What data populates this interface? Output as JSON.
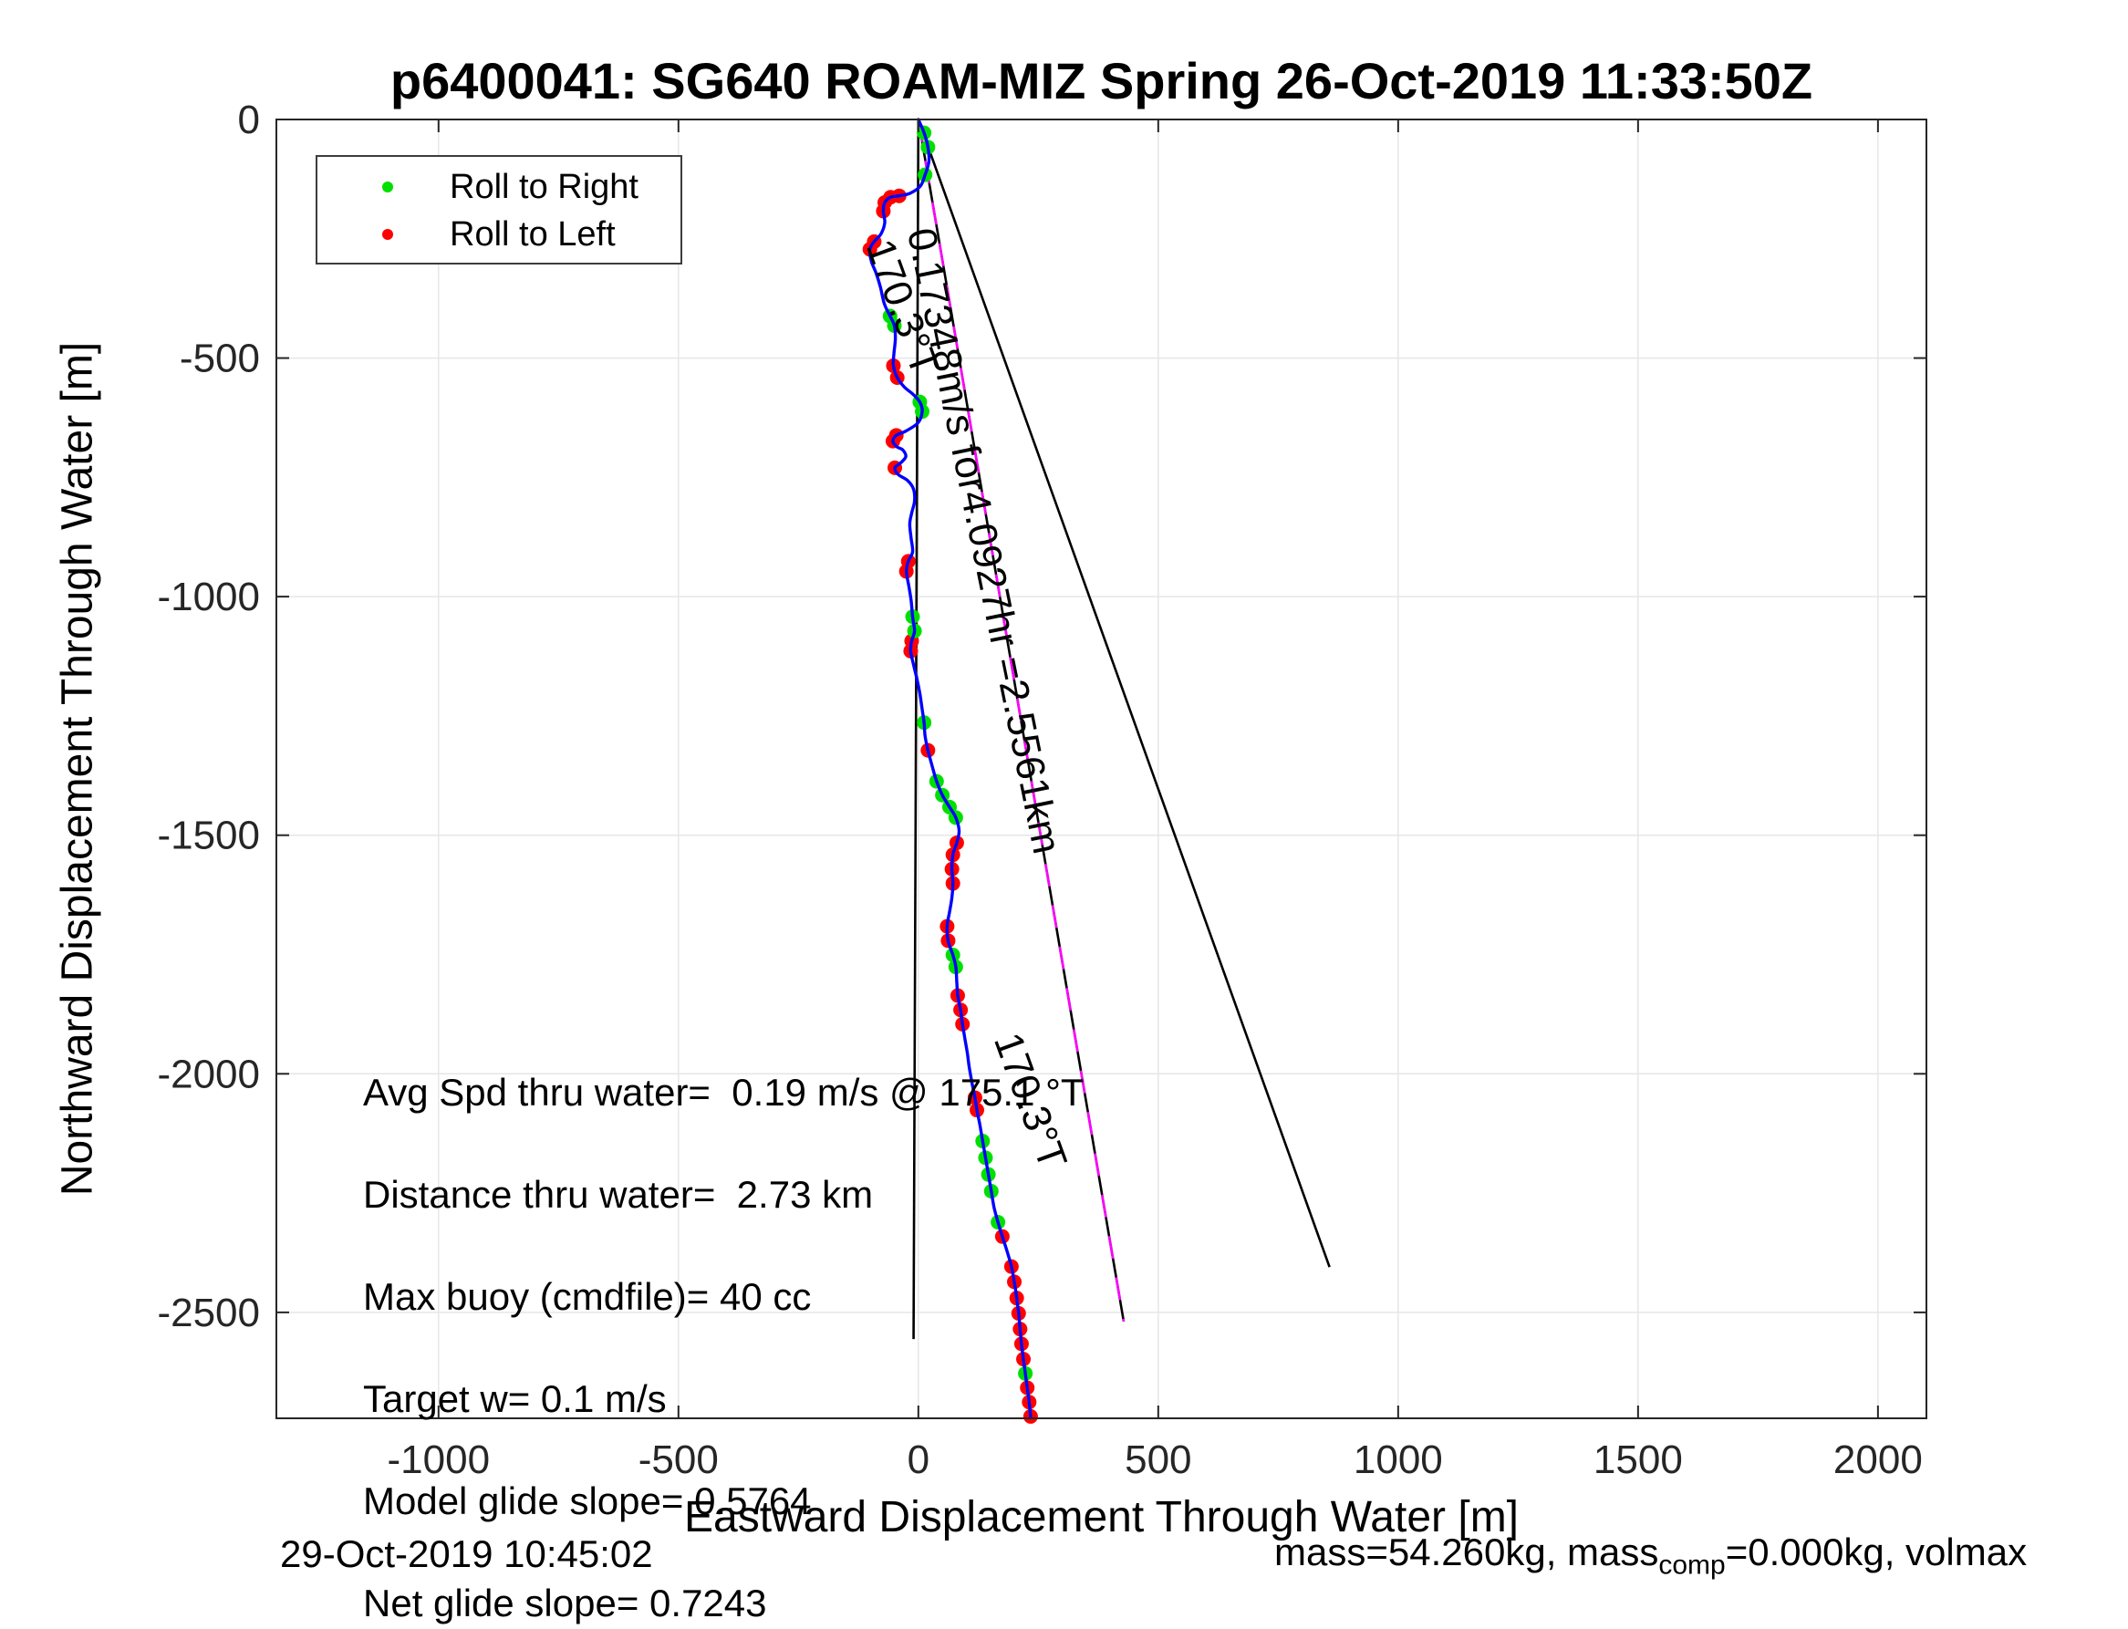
{
  "figure": {
    "footer_left": "29-Oct-2019 10:45:02",
    "footer_right": {
      "prefix": "mass=54.260kg, mass",
      "sub": "comp",
      "suffix": "=0.000kg, volmax"
    }
  },
  "chart_data": {
    "type": "line",
    "title": "p6400041: SG640 ROAM-MIZ Spring 26-Oct-2019 11:33:50Z",
    "xlabel": "Eastward Displacement Through Water [m]",
    "ylabel": "Northward Displacement Through Water [m]",
    "xlim": [
      -1338,
      2101
    ],
    "ylim": [
      -2722,
      0
    ],
    "xticks": [
      -1000,
      -500,
      0,
      500,
      1000,
      1500,
      2000
    ],
    "yticks": [
      0,
      -500,
      -1000,
      -1500,
      -2000,
      -2500
    ],
    "grid": true,
    "legend": {
      "position": "top-left",
      "entries": [
        {
          "label": "Roll to Right",
          "color": "#00e000"
        },
        {
          "label": "Roll to Left",
          "color": "#ff0000"
        }
      ]
    },
    "colors": {
      "trajectory": "#0000ff",
      "roll_right": "#00e000",
      "roll_left": "#ff0000",
      "ref_line": "#000000",
      "model_track": "#ff00ff",
      "grid": "#e6e6e6",
      "axis": "#262626"
    },
    "trajectory": [
      [
        0,
        0
      ],
      [
        12,
        -28
      ],
      [
        20,
        -58
      ],
      [
        22,
        -88
      ],
      [
        14,
        -116
      ],
      [
        4,
        -140
      ],
      [
        -18,
        -155
      ],
      [
        -40,
        -160
      ],
      [
        -58,
        -163
      ],
      [
        -70,
        -174
      ],
      [
        -73,
        -192
      ],
      [
        -70,
        -216
      ],
      [
        -78,
        -240
      ],
      [
        -92,
        -256
      ],
      [
        -101,
        -272
      ],
      [
        -98,
        -297
      ],
      [
        -88,
        -322
      ],
      [
        -79,
        -352
      ],
      [
        -71,
        -386
      ],
      [
        -59,
        -412
      ],
      [
        -50,
        -432
      ],
      [
        -48,
        -460
      ],
      [
        -51,
        -492
      ],
      [
        -52,
        -516
      ],
      [
        -44,
        -541
      ],
      [
        -29,
        -561
      ],
      [
        -11,
        -576
      ],
      [
        3,
        -592
      ],
      [
        8,
        -612
      ],
      [
        -1,
        -636
      ],
      [
        -26,
        -653
      ],
      [
        -46,
        -662
      ],
      [
        -53,
        -674
      ],
      [
        -45,
        -686
      ],
      [
        -33,
        -692
      ],
      [
        -26,
        -706
      ],
      [
        -36,
        -719
      ],
      [
        -49,
        -730
      ],
      [
        -42,
        -744
      ],
      [
        -22,
        -757
      ],
      [
        -10,
        -775
      ],
      [
        -8,
        -800
      ],
      [
        -14,
        -825
      ],
      [
        -18,
        -848
      ],
      [
        -15,
        -878
      ],
      [
        -12,
        -906
      ],
      [
        -21,
        -926
      ],
      [
        -25,
        -947
      ],
      [
        -20,
        -977
      ],
      [
        -15,
        -1008
      ],
      [
        -12,
        -1042
      ],
      [
        -8,
        -1072
      ],
      [
        -14,
        -1093
      ],
      [
        -16,
        -1114
      ],
      [
        -10,
        -1143
      ],
      [
        -3,
        -1172
      ],
      [
        3,
        -1202
      ],
      [
        8,
        -1236
      ],
      [
        12,
        -1264
      ],
      [
        14,
        -1292
      ],
      [
        20,
        -1322
      ],
      [
        29,
        -1356
      ],
      [
        38,
        -1387
      ],
      [
        50,
        -1416
      ],
      [
        65,
        -1441
      ],
      [
        78,
        -1463
      ],
      [
        85,
        -1491
      ],
      [
        80,
        -1516
      ],
      [
        72,
        -1541
      ],
      [
        70,
        -1571
      ],
      [
        72,
        -1601
      ],
      [
        70,
        -1631
      ],
      [
        65,
        -1661
      ],
      [
        60,
        -1691
      ],
      [
        62,
        -1721
      ],
      [
        72,
        -1751
      ],
      [
        78,
        -1776
      ],
      [
        80,
        -1806
      ],
      [
        82,
        -1836
      ],
      [
        88,
        -1866
      ],
      [
        92,
        -1896
      ],
      [
        97,
        -1926
      ],
      [
        102,
        -1956
      ],
      [
        106,
        -1986
      ],
      [
        112,
        -2020
      ],
      [
        118,
        -2050
      ],
      [
        122,
        -2076
      ],
      [
        128,
        -2106
      ],
      [
        134,
        -2141
      ],
      [
        140,
        -2176
      ],
      [
        146,
        -2211
      ],
      [
        152,
        -2246
      ],
      [
        158,
        -2281
      ],
      [
        166,
        -2311
      ],
      [
        175,
        -2341
      ],
      [
        185,
        -2372
      ],
      [
        194,
        -2404
      ],
      [
        200,
        -2436
      ],
      [
        205,
        -2470
      ],
      [
        209,
        -2502
      ],
      [
        212,
        -2535
      ],
      [
        215,
        -2566
      ],
      [
        219,
        -2598
      ],
      [
        223,
        -2628
      ],
      [
        227,
        -2658
      ],
      [
        231,
        -2688
      ],
      [
        234,
        -2718
      ]
    ],
    "markers": {
      "red_idx": [
        7,
        8,
        9,
        10,
        13,
        14,
        23,
        24,
        31,
        32,
        37,
        46,
        47,
        52,
        53,
        60,
        67,
        68,
        69,
        70,
        73,
        74,
        78,
        79,
        80,
        85,
        86,
        94,
        96,
        97,
        98,
        99,
        100,
        101,
        102,
        104,
        105,
        106
      ],
      "green_idx": [
        1,
        2,
        4,
        19,
        20,
        27,
        28,
        50,
        51,
        58,
        62,
        63,
        64,
        65,
        75,
        76,
        88,
        89,
        90,
        91,
        93,
        103
      ]
    },
    "ref_lines": [
      {
        "name": "north-reference-line",
        "from": [
          0,
          0
        ],
        "to": [
          -10,
          -2556
        ],
        "color": "#000000",
        "style": "solid"
      },
      {
        "name": "course-170.3-line",
        "from": [
          0,
          0
        ],
        "to": [
          428,
          -2519
        ],
        "color": "#000000",
        "style": "solid",
        "overlay": {
          "color": "#ff00ff",
          "style": "dashed"
        }
      },
      {
        "name": "heading-line",
        "from": [
          0,
          0
        ],
        "to": [
          857,
          -2405
        ],
        "color": "#000000",
        "style": "solid"
      }
    ],
    "annotations": [
      {
        "text": "0.17348m/s for4.0927hr =2.5561km",
        "px": [
          1033,
          246
        ],
        "rotation": 78.5
      },
      {
        "text": "170.3°T",
        "px": [
          986,
          256
        ],
        "rotation": 70
      },
      {
        "text": "170.3°T",
        "px": [
          1126,
          1126
        ],
        "rotation": 70
      }
    ],
    "stats_text": [
      "Avg Spd thru water=  0.19 m/s @ 175.1 °T",
      "Distance thru water=  2.73 km",
      "Max buoy (cmdfile)= 40 cc",
      "Target w= 0.1 m/s",
      "Model glide slope= 0.5764",
      "Net glide slope= 0.7243"
    ]
  }
}
